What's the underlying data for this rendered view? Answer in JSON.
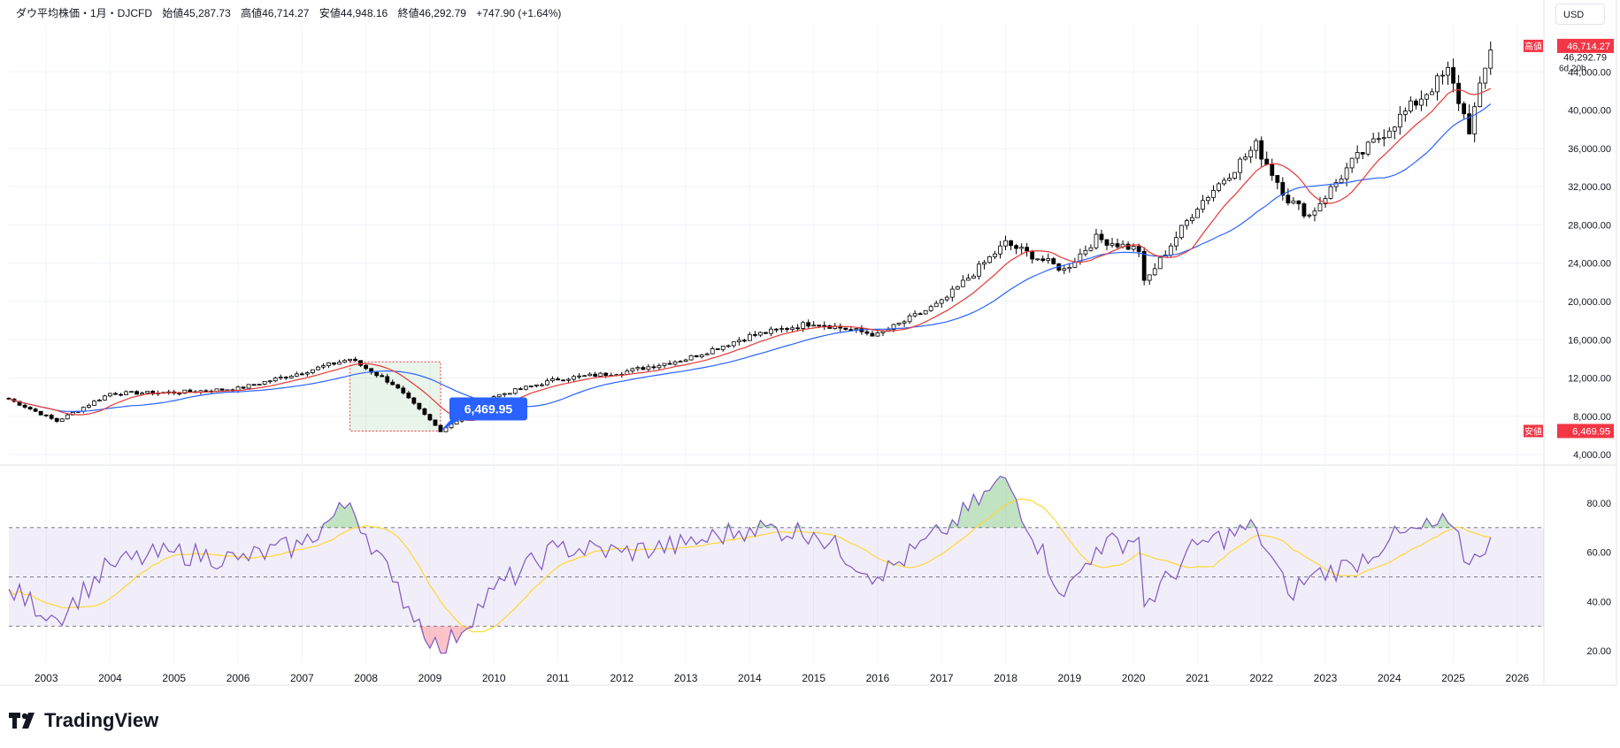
{
  "header": {
    "title": "ダウ平均株価・1月・DJCFD",
    "open": "始値45,287.73",
    "high": "高値46,714.27",
    "low": "安値44,948.16",
    "close": "終値46,292.79",
    "change": "+747.90 (+1.64%)"
  },
  "currency": "USD",
  "price_axis": {
    "high_label": "高値",
    "high_value": "46,714.27",
    "last_value": "46,292.79",
    "countdown": "6d 20h",
    "low_label": "安値",
    "low_value": "6,469.95",
    "ticks": [
      "4,000.00",
      "8,000.00",
      "12,000.00",
      "16,000.00",
      "20,000.00",
      "24,000.00",
      "28,000.00",
      "32,000.00",
      "36,000.00",
      "40,000.00",
      "44,000.00"
    ]
  },
  "rsi_axis": {
    "ticks": [
      "20.00",
      "40.00",
      "60.00",
      "80.00"
    ]
  },
  "x_axis": {
    "ticks": [
      "2003",
      "2004",
      "2005",
      "2006",
      "2007",
      "2008",
      "2009",
      "2010",
      "2011",
      "2012",
      "2013",
      "2014",
      "2015",
      "2016",
      "2017",
      "2018",
      "2019",
      "2020",
      "2021",
      "2022",
      "2023",
      "2024",
      "2025",
      "2026"
    ]
  },
  "callout": "6,469.95",
  "brand": "TradingView",
  "colors": {
    "up_body": "#ffffff",
    "down_body": "#000000",
    "ma_fast": "#e53935",
    "ma_slow": "#2962ff",
    "rsi": "#7e57c2",
    "rsi_ma": "#fdd835",
    "rsi_band": "#7e57c2",
    "label_red": "#f23645",
    "label_blue": "#2962ff",
    "highlight": "#4caf50"
  },
  "chart_data": [
    {
      "type": "candlestick",
      "title": "ダウ平均株価・1月・DJCFD",
      "yscale": "linear",
      "ylim": [
        3000,
        48000
      ],
      "x_range": [
        "2002-06",
        "2026-06"
      ],
      "series": [
        {
          "name": "close",
          "x": [
            "2002-06",
            "2003-03",
            "2004-01",
            "2005-01",
            "2006-01",
            "2007-01",
            "2007-10",
            "2008-06",
            "2009-03",
            "2010-01",
            "2011-01",
            "2012-01",
            "2013-01",
            "2014-01",
            "2015-01",
            "2016-01",
            "2017-01",
            "2018-01",
            "2018-12",
            "2019-06",
            "2020-02",
            "2020-03",
            "2021-01",
            "2021-12",
            "2022-06",
            "2022-10",
            "2023-06",
            "2024-01",
            "2024-12",
            "2025-04",
            "2025-08"
          ],
          "values": [
            9800,
            7500,
            10400,
            10500,
            10900,
            12600,
            14000,
            11400,
            6500,
            10100,
            11900,
            12600,
            14000,
            16400,
            17800,
            16500,
            19900,
            26100,
            23300,
            26600,
            25400,
            21900,
            30000,
            36300,
            30700,
            29000,
            34500,
            38200,
            44000,
            38000,
            46292
          ]
        }
      ],
      "moving_averages": [
        {
          "name": "MA fast",
          "color": "#e53935"
        },
        {
          "name": "MA slow",
          "color": "#2962ff"
        }
      ]
    },
    {
      "type": "line",
      "ylim": [
        15,
        95
      ],
      "bands": [
        30,
        50,
        70
      ],
      "series": [
        {
          "name": "RSI",
          "x": [
            "2002-06",
            "2003-03",
            "2004-01",
            "2005-01",
            "2006-01",
            "2007-01",
            "2007-10",
            "2008-06",
            "2009-03",
            "2010-01",
            "2011-01",
            "2012-01",
            "2013-01",
            "2014-01",
            "2015-01",
            "2016-01",
            "2017-01",
            "2018-01",
            "2018-12",
            "2019-06",
            "2020-02",
            "2020-03",
            "2021-01",
            "2021-12",
            "2022-06",
            "2022-10",
            "2023-06",
            "2024-01",
            "2024-12",
            "2025-04",
            "2025-08"
          ],
          "values": [
            45,
            33,
            55,
            60,
            57,
            63,
            80,
            48,
            19,
            45,
            62,
            60,
            63,
            70,
            68,
            50,
            68,
            90,
            42,
            62,
            66,
            38,
            63,
            70,
            43,
            50,
            55,
            65,
            72,
            55,
            66
          ]
        }
      ]
    }
  ]
}
